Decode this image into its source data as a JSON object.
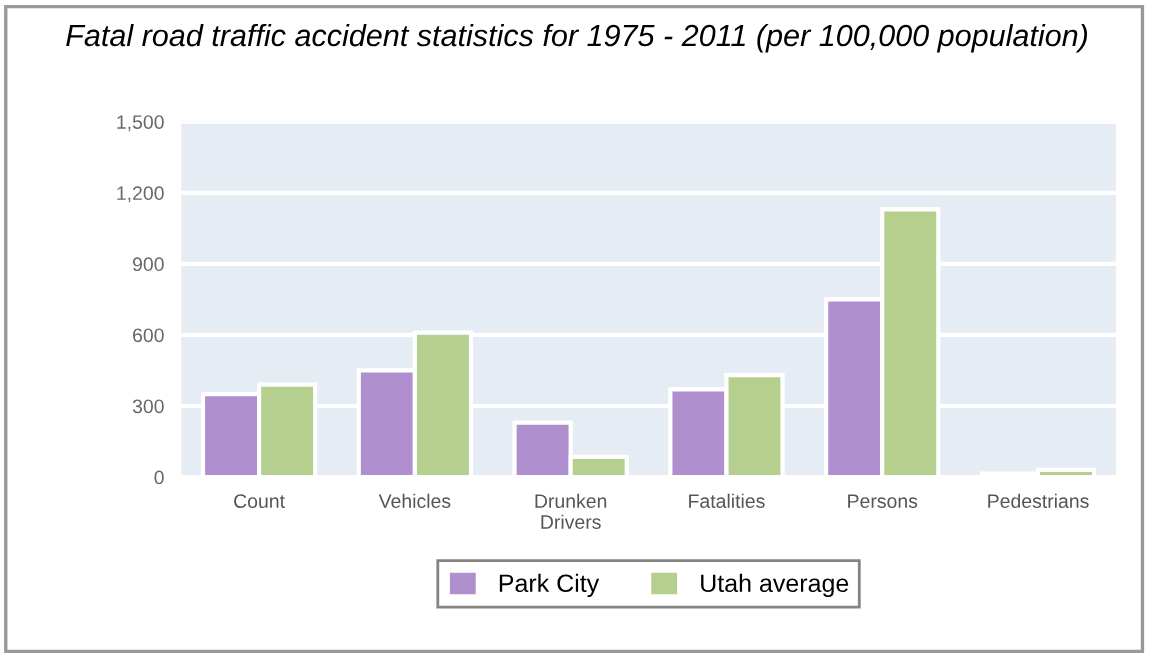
{
  "chart_data": {
    "type": "bar",
    "title": "Fatal road traffic accident statistics for 1975 - 2011 (per 100,000 population)",
    "categories": [
      "Count",
      "Vehicles",
      "Drunken\nDrivers",
      "Fatalities",
      "Persons",
      "Pedestrians"
    ],
    "series": [
      {
        "name": "Park City",
        "color": "#b08fcf",
        "values": [
          350,
          450,
          230,
          370,
          750,
          15
        ]
      },
      {
        "name": "Utah average",
        "color": "#b5cf8f",
        "values": [
          390,
          610,
          85,
          430,
          1130,
          30
        ]
      }
    ],
    "ylim": [
      0,
      1500
    ],
    "yticks": [
      0,
      {
        "value": 300,
        "label": "300"
      },
      {
        "value": 600,
        "label": "600"
      },
      {
        "value": 900,
        "label": "900"
      },
      {
        "value": 1200,
        "label": "1,200"
      },
      {
        "value": 1500,
        "label": "1,500"
      }
    ],
    "grid": "y",
    "legend": "bottom"
  }
}
